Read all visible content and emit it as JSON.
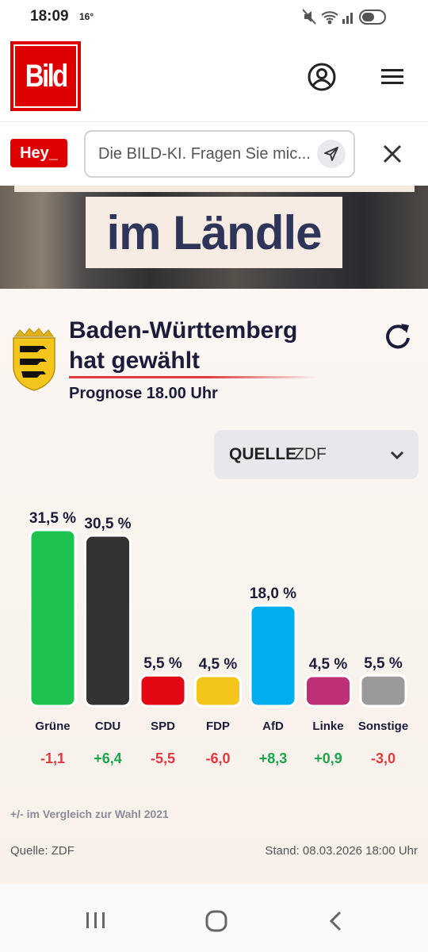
{
  "status_bar": {
    "time": "18:09",
    "temperature": "16°"
  },
  "header": {
    "logo_text": "Bild",
    "account_icon": "account-circle-icon",
    "menu_icon": "hamburger-menu-icon"
  },
  "search": {
    "badge": "Hey_",
    "placeholder": "Die BILD-KI. Fragen Sie mic...",
    "send_icon": "send-icon",
    "close_icon": "close-icon"
  },
  "hero": {
    "headline": "im Ländle"
  },
  "widget": {
    "title_line1": "Baden-Württemberg",
    "title_line2": "hat gewählt",
    "subtitle": "Prognose 18.00 Uhr",
    "source_label": "QUELLE",
    "source_value": "ZDF",
    "note": "+/- im Vergleich zur Wahl 2021",
    "footer_source": "Quelle: ZDF",
    "footer_stand": "Stand: 08.03.2026 18:00 Uhr"
  },
  "chart_data": {
    "type": "bar",
    "categories": [
      "Grüne",
      "CDU",
      "SPD",
      "FDP",
      "AfD",
      "Linke",
      "Sonstige"
    ],
    "values": [
      31.5,
      30.5,
      5.5,
      4.5,
      18.0,
      4.5,
      5.5
    ],
    "value_labels": [
      "31,5 %",
      "30,5 %",
      "5,5 %",
      "4,5 %",
      "18,0 %",
      "4,5 %",
      "5,5 %"
    ],
    "changes": [
      -1.1,
      6.4,
      -5.5,
      -6.0,
      8.3,
      0.9,
      -3.0
    ],
    "change_labels": [
      "-1,1",
      "+6,4",
      "-5,5",
      "-6,0",
      "+8,3",
      "+0,9",
      "-3,0"
    ],
    "colors": [
      "#1ec34f",
      "#333333",
      "#e30613",
      "#f4c51a",
      "#00adef",
      "#be3075",
      "#9a9a9a"
    ],
    "positive_color": "#1aa64b",
    "negative_color": "#e0393f",
    "grid": false
  }
}
